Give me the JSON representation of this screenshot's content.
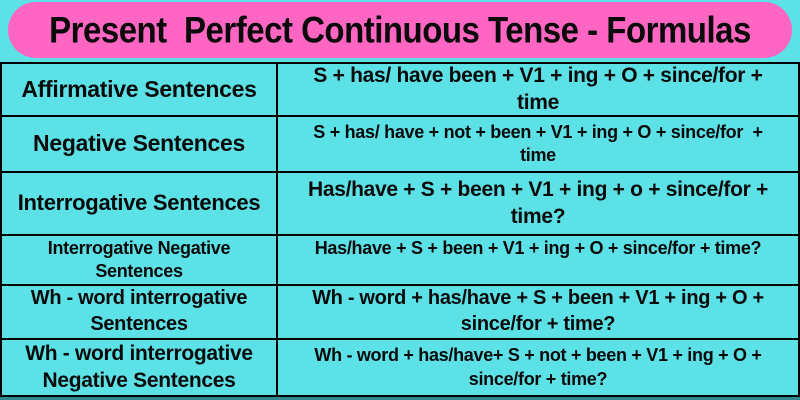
{
  "colors": {
    "background": "#5CE1E6",
    "banner": "#FF66C4",
    "text": "#000000",
    "border": "#000000",
    "bottom_strip": "#2C8A8E"
  },
  "header": {
    "title": "Present  Perfect Continuous Tense - Formulas"
  },
  "table": {
    "columns": [
      "sentence-type",
      "formula"
    ],
    "rows": [
      {
        "label": "Affirmative Sentences",
        "formula": "S + has/ have been + V1 + ing + O + since/for +\ntime"
      },
      {
        "label": "Negative Sentences",
        "formula": "S + has/ have + not + been + V1 + ing + O + since/for  +\ntime"
      },
      {
        "label": "Interrogative Sentences",
        "formula": "Has/have + S + been + V1 + ing + o + since/for +\ntime?"
      },
      {
        "label": "Interrogative Negative\nSentences",
        "formula": "Has/have + S + been + V1 + ing + O + since/for + time?"
      },
      {
        "label": "Wh - word interrogative\nSentences",
        "formula": "Wh - word + has/have + S + been + V1 + ing + O +\nsince/for + time?"
      },
      {
        "label": "Wh - word interrogative\nNegative Sentences",
        "formula": "Wh - word + has/have+ S + not + been + V1 + ing + O +\nsince/for + time?"
      }
    ]
  }
}
